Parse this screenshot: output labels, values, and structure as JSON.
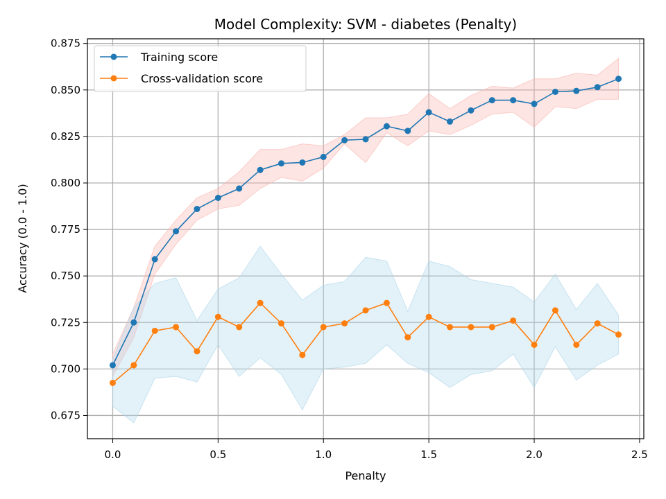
{
  "chart_data": {
    "type": "line",
    "title": "Model Complexity: SVM - diabetes (Penalty)",
    "xlabel": "Penalty",
    "ylabel": "Accuracy (0.0 - 1.0)",
    "xlim": [
      -0.12,
      2.52
    ],
    "ylim": [
      0.6625,
      0.8775
    ],
    "xticks": [
      0.0,
      0.5,
      1.0,
      1.5,
      2.0,
      2.5
    ],
    "xtick_labels": [
      "0.0",
      "0.5",
      "1.0",
      "1.5",
      "2.0",
      "2.5"
    ],
    "yticks": [
      0.675,
      0.7,
      0.725,
      0.75,
      0.775,
      0.8,
      0.825,
      0.85,
      0.875
    ],
    "ytick_labels": [
      "0.675",
      "0.700",
      "0.725",
      "0.750",
      "0.775",
      "0.800",
      "0.825",
      "0.850",
      "0.875"
    ],
    "grid": true,
    "legend_position": "top-left",
    "x": [
      0.0,
      0.1,
      0.2,
      0.3,
      0.4,
      0.5,
      0.6,
      0.7,
      0.8,
      0.9,
      1.0,
      1.1,
      1.2,
      1.3,
      1.4,
      1.5,
      1.6,
      1.7,
      1.8,
      1.9,
      2.0,
      2.1,
      2.2,
      2.3,
      2.4
    ],
    "series": [
      {
        "name": "Training score",
        "color": "#1f77b4",
        "band_color": "#f8b4ae",
        "values": [
          0.702,
          0.725,
          0.759,
          0.774,
          0.786,
          0.792,
          0.797,
          0.807,
          0.8105,
          0.811,
          0.814,
          0.823,
          0.8235,
          0.8305,
          0.828,
          0.838,
          0.833,
          0.839,
          0.8445,
          0.8445,
          0.8425,
          0.849,
          0.8495,
          0.8515,
          0.856
        ],
        "lower": [
          0.696,
          0.717,
          0.751,
          0.767,
          0.78,
          0.786,
          0.788,
          0.797,
          0.803,
          0.801,
          0.808,
          0.821,
          0.811,
          0.827,
          0.82,
          0.828,
          0.826,
          0.831,
          0.837,
          0.838,
          0.83,
          0.841,
          0.84,
          0.845,
          0.845
        ],
        "upper": [
          0.708,
          0.733,
          0.766,
          0.78,
          0.792,
          0.797,
          0.806,
          0.818,
          0.818,
          0.821,
          0.82,
          0.826,
          0.835,
          0.835,
          0.837,
          0.848,
          0.84,
          0.847,
          0.852,
          0.851,
          0.856,
          0.856,
          0.859,
          0.858,
          0.867
        ]
      },
      {
        "name": "Cross-validation score",
        "color": "#ff7f0e",
        "band_color": "#aed6ea",
        "values": [
          0.6925,
          0.702,
          0.7205,
          0.7225,
          0.7095,
          0.728,
          0.7225,
          0.7355,
          0.7245,
          0.7075,
          0.7225,
          0.7245,
          0.7315,
          0.7355,
          0.717,
          0.728,
          0.7225,
          0.7225,
          0.7225,
          0.726,
          0.713,
          0.7315,
          0.713,
          0.7245,
          0.7185
        ],
        "lower": [
          0.68,
          0.671,
          0.695,
          0.696,
          0.693,
          0.713,
          0.696,
          0.706,
          0.697,
          0.678,
          0.7,
          0.701,
          0.703,
          0.713,
          0.703,
          0.698,
          0.69,
          0.697,
          0.699,
          0.708,
          0.69,
          0.712,
          0.694,
          0.702,
          0.708
        ],
        "upper": [
          0.705,
          0.733,
          0.746,
          0.749,
          0.726,
          0.743,
          0.749,
          0.766,
          0.751,
          0.737,
          0.745,
          0.747,
          0.76,
          0.758,
          0.731,
          0.758,
          0.755,
          0.748,
          0.746,
          0.744,
          0.736,
          0.751,
          0.732,
          0.746,
          0.729
        ]
      }
    ]
  }
}
